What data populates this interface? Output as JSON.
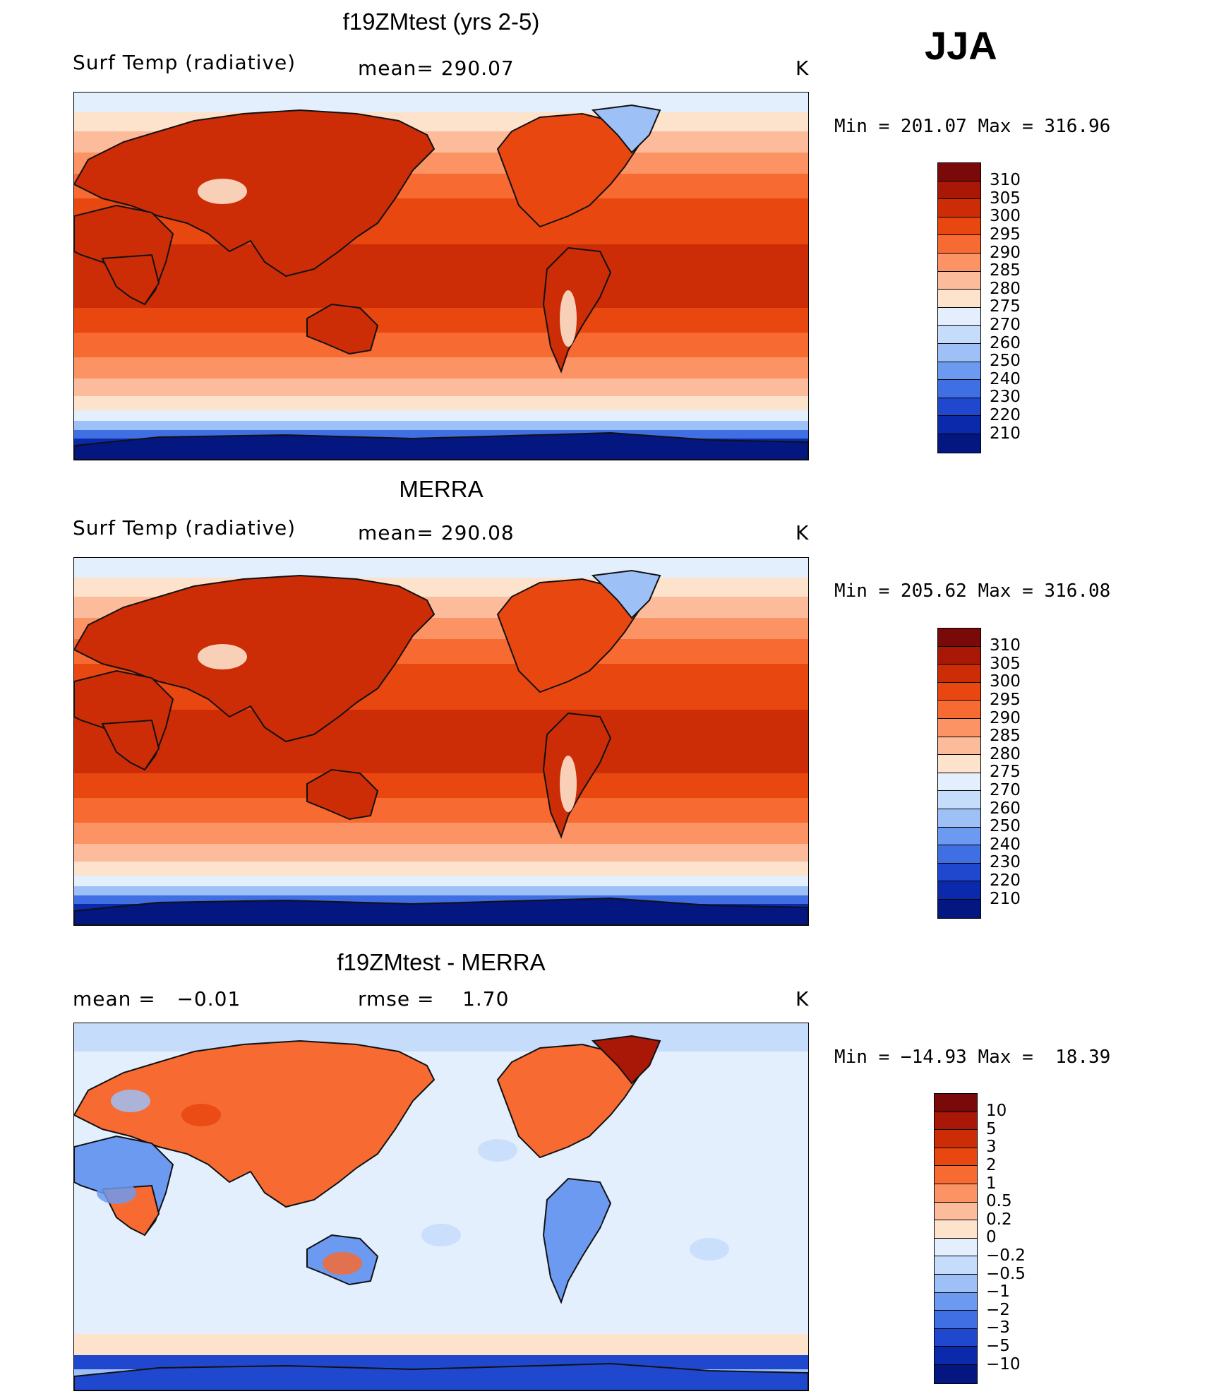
{
  "season": "JJA",
  "panels": [
    {
      "title": "f19ZMtest (yrs 2-5)",
      "left_label": "Surf Temp (radiative)",
      "center_label": "mean= 290.07",
      "units": "K",
      "minmax": "Min = 201.07 Max = 316.96",
      "colorbar": {
        "ticks": [
          "310",
          "305",
          "300",
          "295",
          "290",
          "285",
          "280",
          "275",
          "270",
          "260",
          "250",
          "240",
          "230",
          "220",
          "210"
        ],
        "colors": [
          "#7a0a0a",
          "#a91806",
          "#cc2d06",
          "#e94710",
          "#f76a32",
          "#fb9365",
          "#fcbb9a",
          "#fde2cc",
          "#e3effd",
          "#c5dcfb",
          "#9dc0f7",
          "#6c9af0",
          "#3f6fe2",
          "#1f48ce",
          "#0b2aab",
          "#041680"
        ]
      },
      "map_style": "clim"
    },
    {
      "title": "MERRA",
      "left_label": "Surf Temp (radiative)",
      "center_label": "mean= 290.08",
      "units": "K",
      "minmax": "Min = 205.62 Max = 316.08",
      "colorbar": {
        "ticks": [
          "310",
          "305",
          "300",
          "295",
          "290",
          "285",
          "280",
          "275",
          "270",
          "260",
          "250",
          "240",
          "230",
          "220",
          "210"
        ],
        "colors": [
          "#7a0a0a",
          "#a91806",
          "#cc2d06",
          "#e94710",
          "#f76a32",
          "#fb9365",
          "#fcbb9a",
          "#fde2cc",
          "#e3effd",
          "#c5dcfb",
          "#9dc0f7",
          "#6c9af0",
          "#3f6fe2",
          "#1f48ce",
          "#0b2aab",
          "#041680"
        ]
      },
      "map_style": "clim"
    },
    {
      "title": "f19ZMtest - MERRA",
      "left_label": "mean =   −0.01",
      "center_label": "rmse =    1.70",
      "units": "K",
      "minmax": "Min = −14.93 Max =  18.39",
      "colorbar": {
        "ticks": [
          "10",
          "5",
          "3",
          "2",
          "1",
          "0.5",
          "0.2",
          "0",
          "−0.2",
          "−0.5",
          "−1",
          "−2",
          "−3",
          "−5",
          "−10"
        ],
        "colors": [
          "#7a0a0a",
          "#a91806",
          "#cc2d06",
          "#e94710",
          "#f76a32",
          "#fb9365",
          "#fcbb9a",
          "#fde2cc",
          "#e3effd",
          "#c5dcfb",
          "#9dc0f7",
          "#6c9af0",
          "#3f6fe2",
          "#1f48ce",
          "#0b2aab",
          "#041680"
        ]
      },
      "map_style": "diff"
    }
  ]
}
